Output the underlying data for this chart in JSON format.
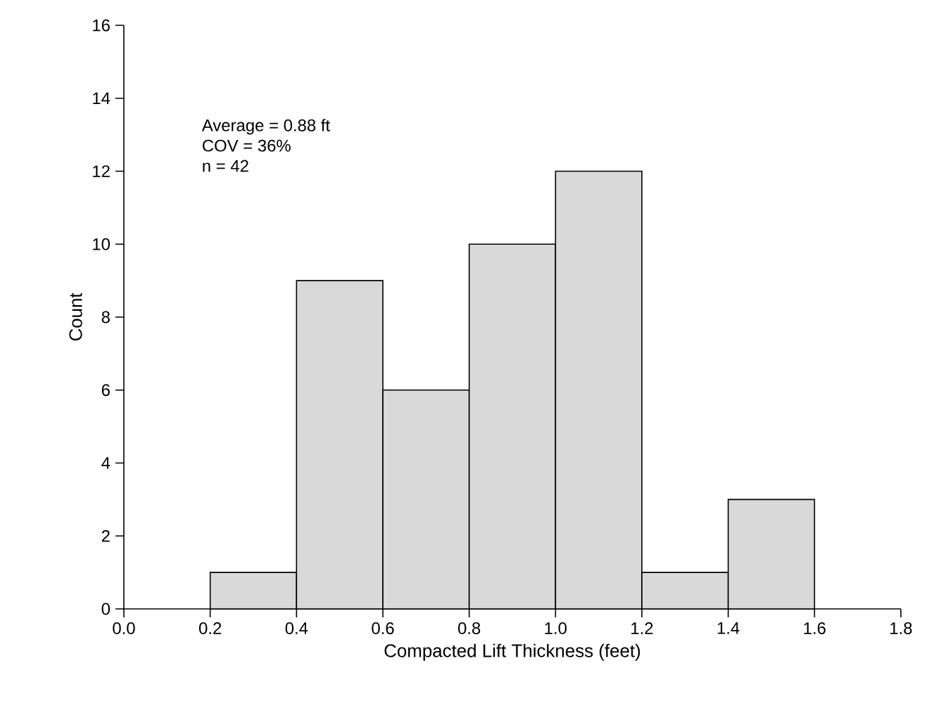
{
  "chart_data": {
    "type": "histogram",
    "xlabel": "Compacted Lift Thickness (feet)",
    "ylabel": "Count",
    "bins": [
      0.2,
      0.4,
      0.6,
      0.8,
      1.0,
      1.2,
      1.4,
      1.6
    ],
    "values": [
      1,
      9,
      6,
      10,
      12,
      1,
      3
    ],
    "color": "#d9d9d9",
    "xlim": [
      0.0,
      1.8
    ],
    "ylim": [
      0,
      16
    ],
    "xticks": [
      {
        "value": 0.0,
        "label": "0.0"
      },
      {
        "value": 0.2,
        "label": "0.2"
      },
      {
        "value": 0.4,
        "label": "0.4"
      },
      {
        "value": 0.6,
        "label": "0.6"
      },
      {
        "value": 0.8,
        "label": "0.8"
      },
      {
        "value": 1.0,
        "label": "1.0"
      },
      {
        "value": 1.2,
        "label": "1.2"
      },
      {
        "value": 1.4,
        "label": "1.4"
      },
      {
        "value": 1.6,
        "label": "1.6"
      },
      {
        "value": 1.8,
        "label": "1.8"
      }
    ],
    "yticks": [
      0,
      2,
      4,
      6,
      8,
      10,
      12,
      14,
      16
    ],
    "annotations": [
      "Average = 0.88 ft",
      "COV = 36%",
      "n = 42"
    ]
  }
}
